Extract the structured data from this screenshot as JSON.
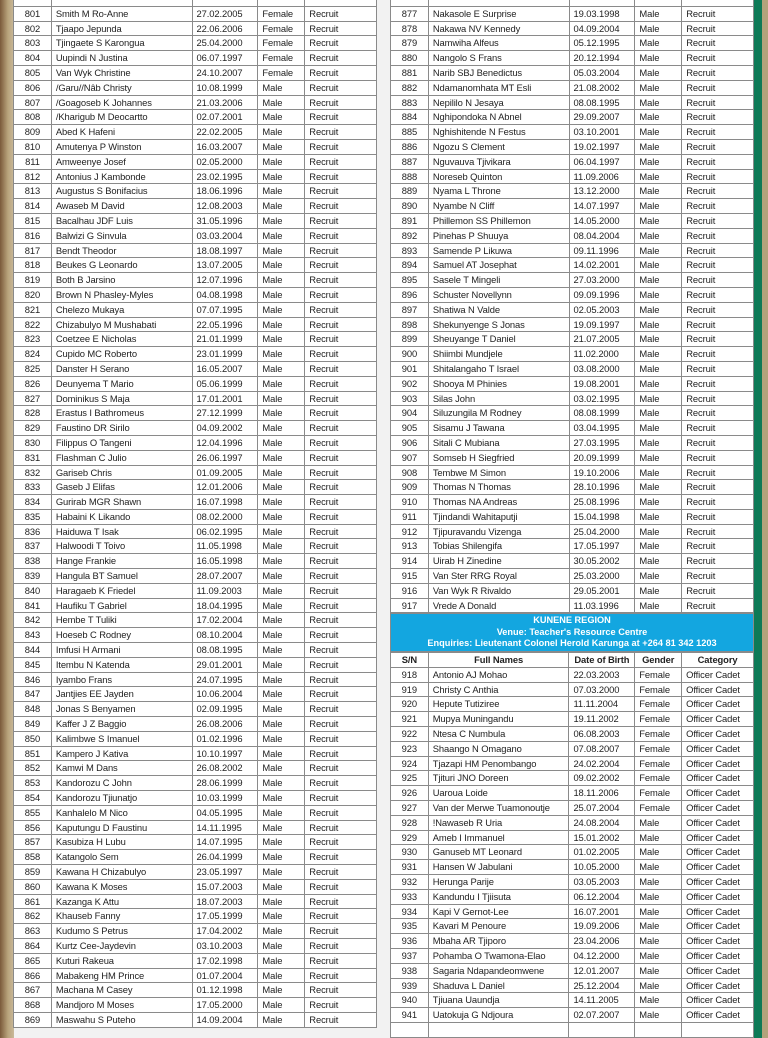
{
  "left": {
    "rows": [
      [
        "",
        "",
        "",
        "",
        ""
      ],
      [
        "801",
        "Smith M Ro-Anne",
        "27.02.2005",
        "Female",
        "Recruit"
      ],
      [
        "802",
        "Tjaapo Jepunda",
        "22.06.2006",
        "Female",
        "Recruit"
      ],
      [
        "803",
        "Tjingaete S Karongua",
        "25.04.2000",
        "Female",
        "Recruit"
      ],
      [
        "804",
        "Uupindi N Justina",
        "06.07.1997",
        "Female",
        "Recruit"
      ],
      [
        "805",
        "Van Wyk Christine",
        "24.10.2007",
        "Female",
        "Recruit"
      ],
      [
        "806",
        "/Garu//Nâb Christy",
        "10.08.1999",
        "Male",
        "Recruit"
      ],
      [
        "807",
        "/Goagoseb K Johannes",
        "21.03.2006",
        "Male",
        "Recruit"
      ],
      [
        "808",
        "/Kharigub M Deocartto",
        "02.07.2001",
        "Male",
        "Recruit"
      ],
      [
        "809",
        "Abed K Hafeni",
        "22.02.2005",
        "Male",
        "Recruit"
      ],
      [
        "810",
        "Amutenya P Winston",
        "16.03.2007",
        "Male",
        "Recruit"
      ],
      [
        "811",
        "Amweenye Josef",
        "02.05.2000",
        "Male",
        "Recruit"
      ],
      [
        "812",
        "Antonius J Kambonde",
        "23.02.1995",
        "Male",
        "Recruit"
      ],
      [
        "813",
        "Augustus S Bonifacius",
        "18.06.1996",
        "Male",
        "Recruit"
      ],
      [
        "814",
        "Awaseb M David",
        "12.08.2003",
        "Male",
        "Recruit"
      ],
      [
        "815",
        "Bacalhau JDF Luis",
        "31.05.1996",
        "Male",
        "Recruit"
      ],
      [
        "816",
        "Balwizi G Sinvula",
        "03.03.2004",
        "Male",
        "Recruit"
      ],
      [
        "817",
        "Bendt Theodor",
        "18.08.1997",
        "Male",
        "Recruit"
      ],
      [
        "818",
        "Beukes G Leonardo",
        "13.07.2005",
        "Male",
        "Recruit"
      ],
      [
        "819",
        "Both B Jarsino",
        "12.07.1996",
        "Male",
        "Recruit"
      ],
      [
        "820",
        "Brown N Phasley-Myles",
        "04.08.1998",
        "Male",
        "Recruit"
      ],
      [
        "821",
        "Chelezo Mukaya",
        "07.07.1995",
        "Male",
        "Recruit"
      ],
      [
        "822",
        "Chizabulyo M Mushabati",
        "22.05.1996",
        "Male",
        "Recruit"
      ],
      [
        "823",
        "Coetzee E Nicholas",
        "21.01.1999",
        "Male",
        "Recruit"
      ],
      [
        "824",
        "Cupido MC Roberto",
        "23.01.1999",
        "Male",
        "Recruit"
      ],
      [
        "825",
        "Danster H Serano",
        "16.05.2007",
        "Male",
        "Recruit"
      ],
      [
        "826",
        "Deunyema T Mario",
        "05.06.1999",
        "Male",
        "Recruit"
      ],
      [
        "827",
        "Dominikus S Maja",
        "17.01.2001",
        "Male",
        "Recruit"
      ],
      [
        "828",
        "Erastus I Bathromeus",
        "27.12.1999",
        "Male",
        "Recruit"
      ],
      [
        "829",
        "Faustino DR Sirilo",
        "04.09.2002",
        "Male",
        "Recruit"
      ],
      [
        "830",
        "Filippus O Tangeni",
        "12.04.1996",
        "Male",
        "Recruit"
      ],
      [
        "831",
        "Flashman C Julio",
        "26.06.1997",
        "Male",
        "Recruit"
      ],
      [
        "832",
        "Gariseb Chris",
        "01.09.2005",
        "Male",
        "Recruit"
      ],
      [
        "833",
        "Gaseb J Elifas",
        "12.01.2006",
        "Male",
        "Recruit"
      ],
      [
        "834",
        "Gurirab MGR Shawn",
        "16.07.1998",
        "Male",
        "Recruit"
      ],
      [
        "835",
        "Habaini K Likando",
        "08.02.2000",
        "Male",
        "Recruit"
      ],
      [
        "836",
        "Haiduwa T Isak",
        "06.02.1995",
        "Male",
        "Recruit"
      ],
      [
        "837",
        "Halwoodi T Toivo",
        "11.05.1998",
        "Male",
        "Recruit"
      ],
      [
        "838",
        "Hange Frankie",
        "16.05.1998",
        "Male",
        "Recruit"
      ],
      [
        "839",
        "Hangula BT Samuel",
        "28.07.2007",
        "Male",
        "Recruit"
      ],
      [
        "840",
        "Haragaeb K Friedel",
        "11.09.2003",
        "Male",
        "Recruit"
      ],
      [
        "841",
        "Haufiku T Gabriel",
        "18.04.1995",
        "Male",
        "Recruit"
      ],
      [
        "842",
        "Hembe T Tuliki",
        "17.02.2004",
        "Male",
        "Recruit"
      ],
      [
        "843",
        "Hoeseb C Rodney",
        "08.10.2004",
        "Male",
        "Recruit"
      ],
      [
        "844",
        "Imfusi H Armani",
        "08.08.1995",
        "Male",
        "Recruit"
      ],
      [
        "845",
        "Itembu N Katenda",
        "29.01.2001",
        "Male",
        "Recruit"
      ],
      [
        "846",
        "Iyambo Frans",
        "24.07.1995",
        "Male",
        "Recruit"
      ],
      [
        "847",
        "Jantjies EE Jayden",
        "10.06.2004",
        "Male",
        "Recruit"
      ],
      [
        "848",
        "Jonas S Benyamen",
        "02.09.1995",
        "Male",
        "Recruit"
      ],
      [
        "849",
        "Kaffer J Z Baggio",
        "26.08.2006",
        "Male",
        "Recruit"
      ],
      [
        "850",
        "Kalimbwe S Imanuel",
        "01.02.1996",
        "Male",
        "Recruit"
      ],
      [
        "851",
        "Kampero J Kativa",
        "10.10.1997",
        "Male",
        "Recruit"
      ],
      [
        "852",
        "Kamwi M Dans",
        "26.08.2002",
        "Male",
        "Recruit"
      ],
      [
        "853",
        "Kandorozu C John",
        "28.06.1999",
        "Male",
        "Recruit"
      ],
      [
        "854",
        "Kandorozu Tjiunatjo",
        "10.03.1999",
        "Male",
        "Recruit"
      ],
      [
        "855",
        "Kanhalelo M Nico",
        "04.05.1995",
        "Male",
        "Recruit"
      ],
      [
        "856",
        "Kaputungu D Faustinu",
        "14.11.1995",
        "Male",
        "Recruit"
      ],
      [
        "857",
        "Kasubiza H Lubu",
        "14.07.1995",
        "Male",
        "Recruit"
      ],
      [
        "858",
        "Katangolo Sem",
        "26.04.1999",
        "Male",
        "Recruit"
      ],
      [
        "859",
        "Kawana H Chizabulyo",
        "23.05.1997",
        "Male",
        "Recruit"
      ],
      [
        "860",
        "Kawana K Moses",
        "15.07.2003",
        "Male",
        "Recruit"
      ],
      [
        "861",
        "Kazanga K Attu",
        "18.07.2003",
        "Male",
        "Recruit"
      ],
      [
        "862",
        "Khauseb Fanny",
        "17.05.1999",
        "Male",
        "Recruit"
      ],
      [
        "863",
        "Kudumo S Petrus",
        "17.04.2002",
        "Male",
        "Recruit"
      ],
      [
        "864",
        "Kurtz Cee-Jaydevin",
        "03.10.2003",
        "Male",
        "Recruit"
      ],
      [
        "865",
        "Kuturi Rakeua",
        "17.02.1998",
        "Male",
        "Recruit"
      ],
      [
        "866",
        "Mabakeng HM Prince",
        "01.07.2004",
        "Male",
        "Recruit"
      ],
      [
        "867",
        "Machana M Casey",
        "01.12.1998",
        "Male",
        "Recruit"
      ],
      [
        "868",
        "Mandjoro M Moses",
        "17.05.2000",
        "Male",
        "Recruit"
      ],
      [
        "869",
        "Maswahu S Puteho",
        "14.09.2004",
        "Male",
        "Recruit"
      ]
    ]
  },
  "right": {
    "rows": [
      [
        "",
        "",
        "",
        "",
        ""
      ],
      [
        "877",
        "Nakasole E Surprise",
        "19.03.1998",
        "Male",
        "Recruit"
      ],
      [
        "878",
        "Nakawa NV Kennedy",
        "04.09.2004",
        "Male",
        "Recruit"
      ],
      [
        "879",
        "Namwiha Alfeus",
        "05.12.1995",
        "Male",
        "Recruit"
      ],
      [
        "880",
        "Nangolo S Frans",
        "20.12.1994",
        "Male",
        "Recruit"
      ],
      [
        "881",
        "Narib SBJ Benedictus",
        "05.03.2004",
        "Male",
        "Recruit"
      ],
      [
        "882",
        "Ndamanomhata MT Esli",
        "21.08.2002",
        "Male",
        "Recruit"
      ],
      [
        "883",
        "Nepililo N Jesaya",
        "08.08.1995",
        "Male",
        "Recruit"
      ],
      [
        "884",
        "Nghipondoka N Abnel",
        "29.09.2007",
        "Male",
        "Recruit"
      ],
      [
        "885",
        "Nghishitende N Festus",
        "03.10.2001",
        "Male",
        "Recruit"
      ],
      [
        "886",
        "Ngozu S Clement",
        "19.02.1997",
        "Male",
        "Recruit"
      ],
      [
        "887",
        "Nguvauva Tjivikara",
        "06.04.1997",
        "Male",
        "Recruit"
      ],
      [
        "888",
        "Noreseb Quinton",
        "11.09.2006",
        "Male",
        "Recruit"
      ],
      [
        "889",
        "Nyama L Throne",
        "13.12.2000",
        "Male",
        "Recruit"
      ],
      [
        "890",
        "Nyambe N Cliff",
        "14.07.1997",
        "Male",
        "Recruit"
      ],
      [
        "891",
        "Phillemon SS Phillemon",
        "14.05.2000",
        "Male",
        "Recruit"
      ],
      [
        "892",
        "Pinehas P Shuuya",
        "08.04.2004",
        "Male",
        "Recruit"
      ],
      [
        "893",
        "Samende P Likuwa",
        "09.11.1996",
        "Male",
        "Recruit"
      ],
      [
        "894",
        "Samuel AT Josephat",
        "14.02.2001",
        "Male",
        "Recruit"
      ],
      [
        "895",
        "Sasele T Mingeli",
        "27.03.2000",
        "Male",
        "Recruit"
      ],
      [
        "896",
        "Schuster Novellynn",
        "09.09.1996",
        "Male",
        "Recruit"
      ],
      [
        "897",
        "Shatiwa N Valde",
        "02.05.2003",
        "Male",
        "Recruit"
      ],
      [
        "898",
        "Shekunyenge S Jonas",
        "19.09.1997",
        "Male",
        "Recruit"
      ],
      [
        "899",
        "Sheuyange T Daniel",
        "21.07.2005",
        "Male",
        "Recruit"
      ],
      [
        "900",
        "Shiimbi Mundjele",
        "11.02.2000",
        "Male",
        "Recruit"
      ],
      [
        "901",
        "Shitalangaho T Israel",
        "03.08.2000",
        "Male",
        "Recruit"
      ],
      [
        "902",
        "Shooya M Phinies",
        "19.08.2001",
        "Male",
        "Recruit"
      ],
      [
        "903",
        "Silas John",
        "03.02.1995",
        "Male",
        "Recruit"
      ],
      [
        "904",
        "Siluzungila M Rodney",
        "08.08.1999",
        "Male",
        "Recruit"
      ],
      [
        "905",
        "Sisamu J Tawana",
        "03.04.1995",
        "Male",
        "Recruit"
      ],
      [
        "906",
        "Sitali C Mubiana",
        "27.03.1995",
        "Male",
        "Recruit"
      ],
      [
        "907",
        "Somseb H Siegfried",
        "20.09.1999",
        "Male",
        "Recruit"
      ],
      [
        "908",
        "Tembwe M Simon",
        "19.10.2006",
        "Male",
        "Recruit"
      ],
      [
        "909",
        "Thomas N Thomas",
        "28.10.1996",
        "Male",
        "Recruit"
      ],
      [
        "910",
        "Thomas NA Andreas",
        "25.08.1996",
        "Male",
        "Recruit"
      ],
      [
        "911",
        "Tjindandi Wahitaputji",
        "15.04.1998",
        "Male",
        "Recruit"
      ],
      [
        "912",
        "Tjipuravandu Vizenga",
        "25.04.2000",
        "Male",
        "Recruit"
      ],
      [
        "913",
        "Tobias Shilengifa",
        "17.05.1997",
        "Male",
        "Recruit"
      ],
      [
        "914",
        "Uirab H Zinedine",
        "30.05.2002",
        "Male",
        "Recruit"
      ],
      [
        "915",
        "Van Ster RRG Royal",
        "25.03.2000",
        "Male",
        "Recruit"
      ],
      [
        "916",
        "Van Wyk R Rivaldo",
        "29.05.2001",
        "Male",
        "Recruit"
      ],
      [
        "917",
        "Vrede A Donald",
        "11.03.1996",
        "Male",
        "Recruit"
      ]
    ],
    "region": {
      "title": "KUNENE REGION",
      "venue": "Venue: Teacher's Resource Centre",
      "enquiries": "Enquiries: Lieutenant Colonel Herold Karunga at +264 81 342 1203"
    },
    "headers": [
      "S/N",
      "Full Names",
      "Date of Birth",
      "Gender",
      "Category"
    ],
    "rows2": [
      [
        "918",
        "Antonio AJ Mohao",
        "22.03.2003",
        "Female",
        "Officer Cadet"
      ],
      [
        "919",
        "Christy C Anthia",
        "07.03.2000",
        "Female",
        "Officer Cadet"
      ],
      [
        "920",
        "Hepute Tutiziree",
        "11.11.2004",
        "Female",
        "Officer Cadet"
      ],
      [
        "921",
        "Mupya Muningandu",
        "19.11.2002",
        "Female",
        "Officer Cadet"
      ],
      [
        "922",
        "Ntesa C Numbula",
        "06.08.2003",
        "Female",
        "Officer Cadet"
      ],
      [
        "923",
        "Shaango N Omagano",
        "07.08.2007",
        "Female",
        "Officer Cadet"
      ],
      [
        "924",
        "Tjazapi HM Penombango",
        "24.02.2004",
        "Female",
        "Officer Cadet"
      ],
      [
        "925",
        "Tjituri JNO Doreen",
        "09.02.2002",
        "Female",
        "Officer Cadet"
      ],
      [
        "926",
        "Uaroua Loide",
        "18.11.2006",
        "Female",
        "Officer Cadet"
      ],
      [
        "927",
        "Van der Merwe Tuamonoutje",
        "25.07.2004",
        "Female",
        "Officer Cadet"
      ],
      [
        "928",
        "!Nawaseb R Uria",
        "24.08.2004",
        "Male",
        "Officer Cadet"
      ],
      [
        "929",
        "Ameb I Immanuel",
        "15.01.2002",
        "Male",
        "Officer Cadet"
      ],
      [
        "930",
        "Ganuseb MT Leonard",
        "01.02.2005",
        "Male",
        "Officer Cadet"
      ],
      [
        "931",
        "Hansen W Jabulani",
        "10.05.2000",
        "Male",
        "Officer Cadet"
      ],
      [
        "932",
        "Herunga Parije",
        "03.05.2003",
        "Male",
        "Officer Cadet"
      ],
      [
        "933",
        "Kandundu I Tjiisuta",
        "06.12.2004",
        "Male",
        "Officer Cadet"
      ],
      [
        "934",
        "Kapi V Gernot-Lee",
        "16.07.2001",
        "Male",
        "Officer Cadet"
      ],
      [
        "935",
        "Kavari M Penoure",
        "19.09.2006",
        "Male",
        "Officer Cadet"
      ],
      [
        "936",
        "Mbaha AR Tjiporo",
        "23.04.2006",
        "Male",
        "Officer Cadet"
      ],
      [
        "937",
        "Pohamba O Twamona-Elao",
        "04.12.2000",
        "Male",
        "Officer Cadet"
      ],
      [
        "938",
        "Sagaria Ndapandeomwene",
        "12.01.2007",
        "Male",
        "Officer Cadet"
      ],
      [
        "939",
        "Shaduva L Daniel",
        "25.12.2004",
        "Male",
        "Officer Cadet"
      ],
      [
        "940",
        "Tjiuana Uaundja",
        "14.11.2005",
        "Male",
        "Officer Cadet"
      ],
      [
        "941",
        "Uatokuja G Ndjoura",
        "02.07.2007",
        "Male",
        "Officer Cadet"
      ],
      [
        "",
        "",
        "",
        "",
        ""
      ]
    ]
  },
  "colors": {
    "banner": "#13a6e0",
    "border": "#8a8a8a"
  }
}
